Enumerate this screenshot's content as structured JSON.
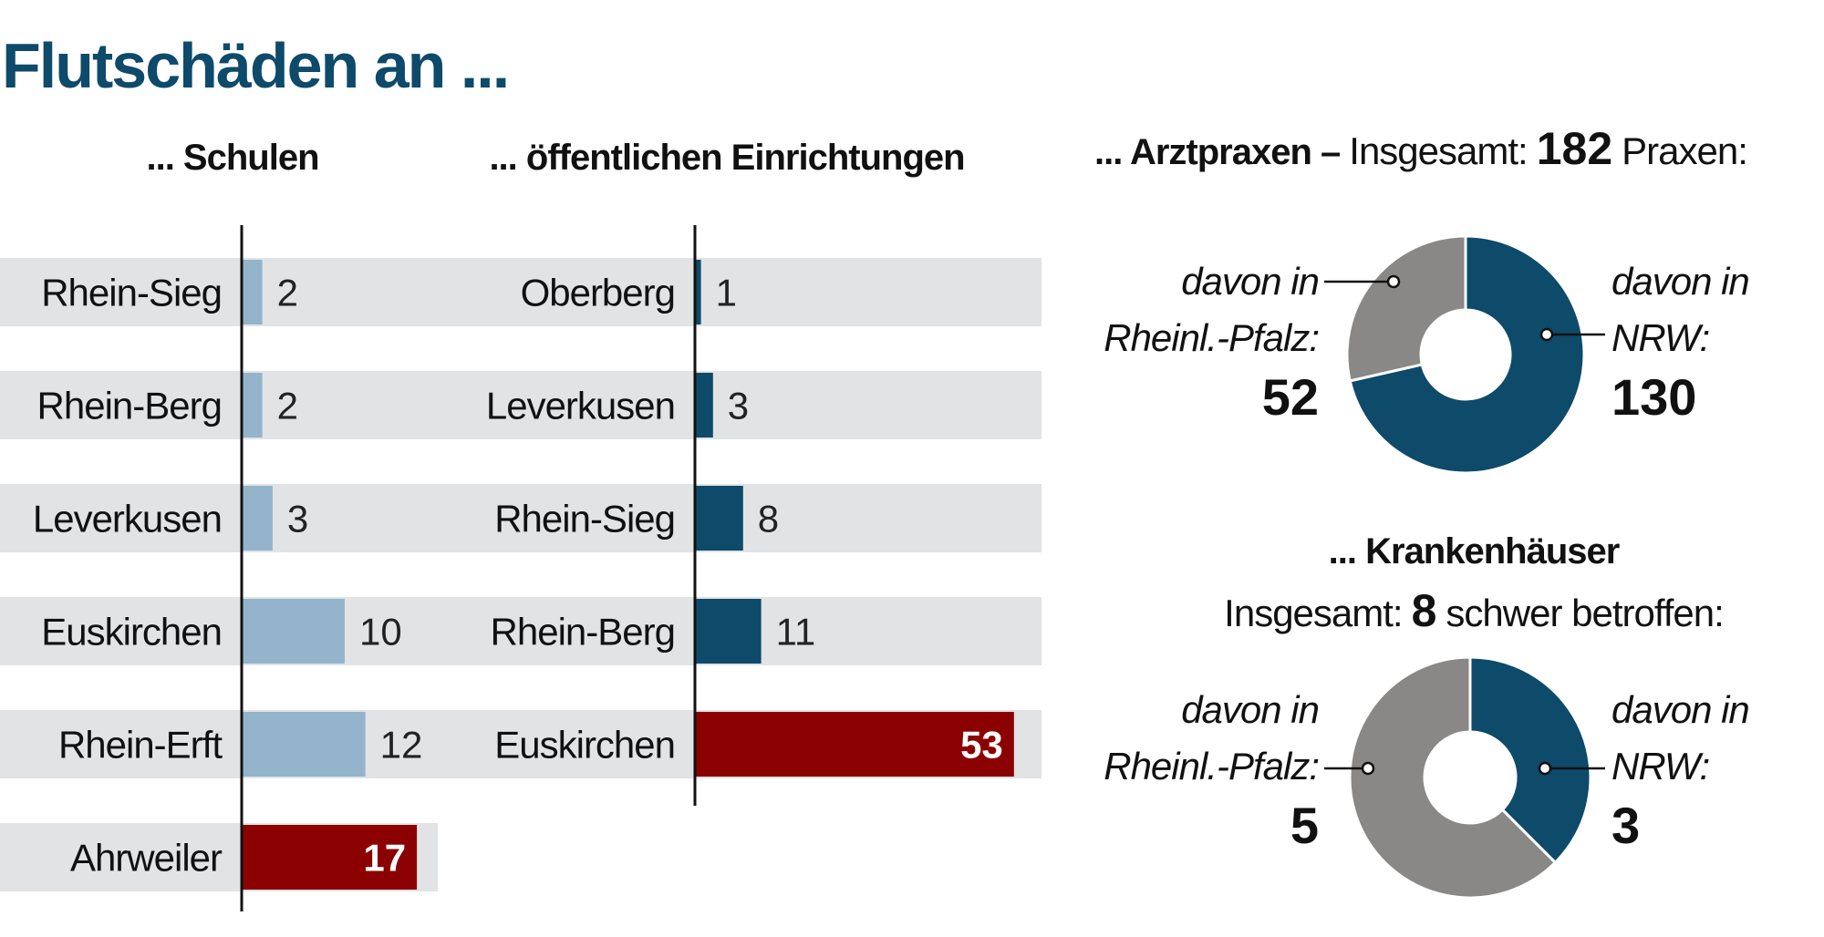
{
  "title": "Flutschäden an ...",
  "chart_data": [
    {
      "type": "bar",
      "title": "... Schulen",
      "categories": [
        "Rhein-Sieg",
        "Rhein-Berg",
        "Leverkusen",
        "Euskirchen",
        "Rhein-Erft",
        "Ahrweiler"
      ],
      "values": [
        2,
        2,
        3,
        10,
        12,
        17
      ],
      "highlight_index": 5,
      "colors": {
        "bar": "#94b4cc",
        "highlight": "#8b0000",
        "background": "#e1e3e4"
      }
    },
    {
      "type": "bar",
      "title": "... öffentlichen Einrichtungen",
      "categories": [
        "Oberberg",
        "Leverkusen",
        "Rhein-Sieg",
        "Rhein-Berg",
        "Euskirchen"
      ],
      "values": [
        1,
        3,
        8,
        11,
        53
      ],
      "highlight_index": 4,
      "colors": {
        "bar": "#0e4a6a",
        "highlight": "#8b0000",
        "background": "#e1e3e4"
      }
    },
    {
      "type": "pie",
      "title": "... Arztpraxen –",
      "subtitle": {
        "prefix": "Insgesamt:",
        "total": "182",
        "suffix": "Praxen:"
      },
      "slices": [
        {
          "label_line1": "davon in",
          "label_line2": "NRW:",
          "value": 130,
          "color": "#0e4a6a"
        },
        {
          "label_line1": "davon in",
          "label_line2": "Rheinl.-Pfalz:",
          "value": 52,
          "color": "#8a8886"
        }
      ]
    },
    {
      "type": "pie",
      "title": "... Krankenhäuser",
      "subtitle": {
        "prefix": "Insgesamt:",
        "total": "8",
        "suffix": "schwer betroffen:"
      },
      "slices": [
        {
          "label_line1": "davon in",
          "label_line2": "NRW:",
          "value": 3,
          "color": "#0e4a6a"
        },
        {
          "label_line1": "davon in",
          "label_line2": "Rheinl.-Pfalz:",
          "value": 5,
          "color": "#8a8886"
        }
      ]
    }
  ]
}
